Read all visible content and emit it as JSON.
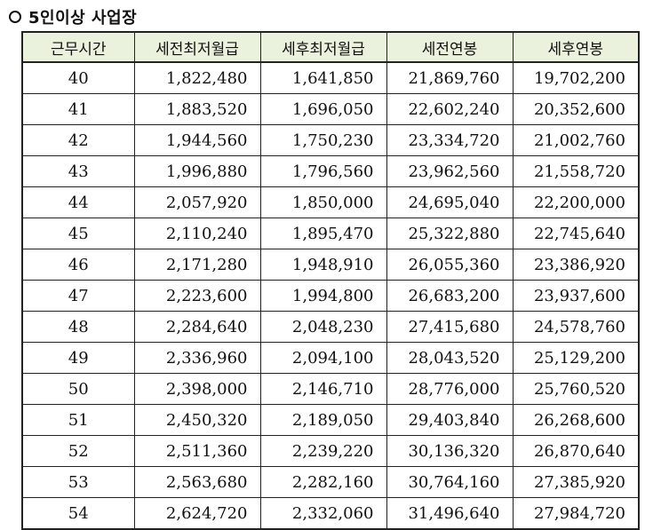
{
  "heading": {
    "text": "5인이상 사업장"
  },
  "table": {
    "columns": [
      "근무시간",
      "세전최저월급",
      "세후최저월급",
      "세전연봉",
      "세후연봉"
    ],
    "rows": [
      [
        "40",
        "1,822,480",
        "1,641,850",
        "21,869,760",
        "19,702,200"
      ],
      [
        "41",
        "1,883,520",
        "1,696,050",
        "22,602,240",
        "20,352,600"
      ],
      [
        "42",
        "1,944,560",
        "1,750,230",
        "23,334,720",
        "21,002,760"
      ],
      [
        "43",
        "1,996,880",
        "1,796,560",
        "23,962,560",
        "21,558,720"
      ],
      [
        "44",
        "2,057,920",
        "1,850,000",
        "24,695,040",
        "22,200,000"
      ],
      [
        "45",
        "2,110,240",
        "1,895,470",
        "25,322,880",
        "22,745,640"
      ],
      [
        "46",
        "2,171,280",
        "1,948,910",
        "26,055,360",
        "23,386,920"
      ],
      [
        "47",
        "2,223,600",
        "1,994,800",
        "26,683,200",
        "23,937,600"
      ],
      [
        "48",
        "2,284,640",
        "2,048,230",
        "27,415,680",
        "24,578,760"
      ],
      [
        "49",
        "2,336,960",
        "2,094,100",
        "28,043,520",
        "25,129,200"
      ],
      [
        "50",
        "2,398,000",
        "2,146,710",
        "28,776,000",
        "25,760,520"
      ],
      [
        "51",
        "2,450,320",
        "2,189,050",
        "29,403,840",
        "26,268,600"
      ],
      [
        "52",
        "2,511,360",
        "2,239,220",
        "30,136,320",
        "26,870,640"
      ],
      [
        "53",
        "2,563,680",
        "2,282,160",
        "30,764,160",
        "27,385,920"
      ],
      [
        "54",
        "2,624,720",
        "2,332,060",
        "31,496,640",
        "27,984,720"
      ]
    ]
  },
  "colors": {
    "header_bg": "#eaf1dd",
    "border": "#222222",
    "text": "#111111"
  }
}
